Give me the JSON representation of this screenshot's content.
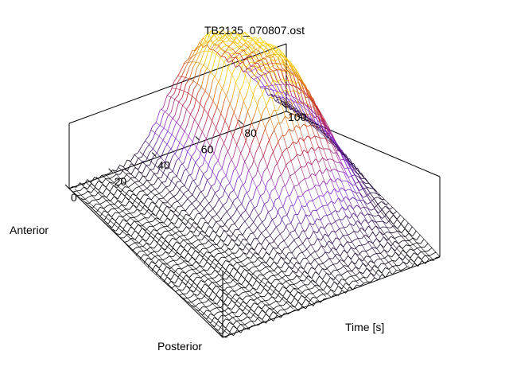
{
  "chart_data": {
    "type": "surface",
    "title": "TB2135_070807.ost",
    "xlabel": "Time [s]",
    "y_axis_end_labels": {
      "back": "Anterior",
      "front": "Posterior"
    },
    "x_range": [
      0,
      100
    ],
    "x_ticks": [
      0,
      20,
      40,
      60,
      80,
      100
    ],
    "x_tick_labels": [
      "0",
      "20",
      "40",
      "60",
      "80",
      "100"
    ],
    "z_description_note": "",
    "grid": false,
    "colormap": [
      "#000000",
      "#8a2be2",
      "#c0201e",
      "#ffd000"
    ],
    "n_profiles": 40,
    "surface_peaks": [
      {
        "time": 62,
        "position": 0.25,
        "height": 0.95
      },
      {
        "time": 80,
        "position": 0.3,
        "height": 0.75
      },
      {
        "time": 48,
        "position": 0.1,
        "height": 0.45
      },
      {
        "time": 40,
        "position": 0.0,
        "height": 0.2
      }
    ]
  }
}
